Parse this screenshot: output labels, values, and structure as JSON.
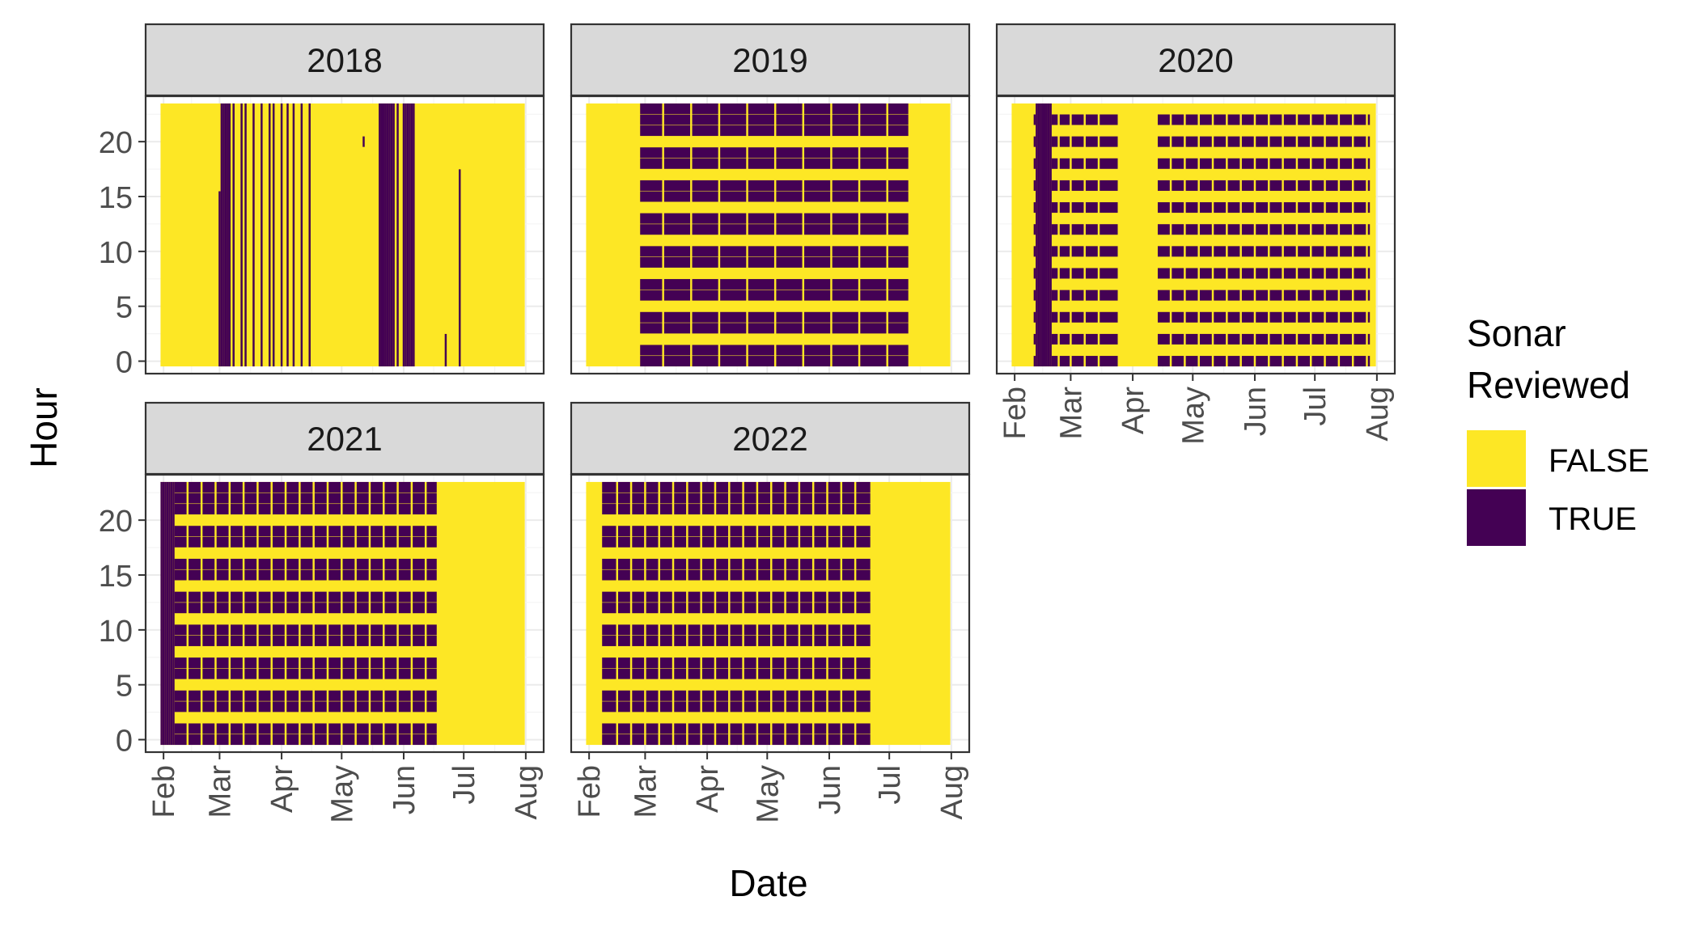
{
  "chart_data": {
    "type": "heatmap",
    "xlabel": "Date",
    "ylabel": "Hour",
    "y_ticks": [
      0,
      5,
      10,
      15,
      20
    ],
    "ylim": [
      0,
      23
    ],
    "x_ticks": [
      "Feb",
      "Mar",
      "Apr",
      "May",
      "Jun",
      "Jul",
      "Aug"
    ],
    "xlim": [
      "Feb 1",
      "Aug 1"
    ],
    "legend": {
      "title": [
        "Sonar",
        "Reviewed"
      ],
      "position": "right",
      "items": [
        {
          "label": "FALSE",
          "color": "#FDE725"
        },
        {
          "label": "TRUE",
          "color": "#440154"
        }
      ]
    },
    "colors": {
      "FALSE": "#FDE725",
      "TRUE": "#440154"
    },
    "grid": true,
    "facets": [
      {
        "year": "2018",
        "data_range": [
          "Jan 31",
          "Jul 31"
        ],
        "reviewed_full_days": [
          "Mar 2",
          "Mar 3",
          "Mar 4",
          "Mar 5",
          "Mar 6",
          "Mar 8",
          "Mar 12",
          "Mar 14",
          "Mar 18",
          "Mar 22",
          "Mar 26",
          "Mar 28",
          "Apr 1",
          "Apr 4",
          "Apr 7",
          "Apr 11",
          "Apr 15",
          "May 20",
          "May 21",
          "May 22",
          "May 23",
          "May 24",
          "May 25",
          "May 26",
          "May 27",
          "May 29",
          "Jun 1",
          "Jun 2",
          "Jun 3",
          "Jun 4",
          "Jun 5",
          "Jun 6"
        ],
        "reviewed_partial": [
          {
            "day": "Mar 1",
            "hours": [
              0,
              15
            ]
          },
          {
            "day": "Jun 22",
            "hours": [
              0,
              2
            ]
          },
          {
            "day": "Jun 29",
            "hours": [
              0,
              17
            ]
          },
          {
            "day": "May 12",
            "hours": [
              20,
              20
            ]
          }
        ],
        "reviewed_hours": []
      },
      {
        "year": "2019",
        "data_range": [
          "Jan 31",
          "Jul 31"
        ],
        "reviewed_days_range": [
          "Feb 27",
          "Jul 10"
        ],
        "reviewed_hours": [
          0,
          1,
          3,
          4,
          6,
          7,
          9,
          10,
          12,
          13,
          15,
          16,
          18,
          19,
          21,
          22,
          23
        ],
        "gap_days": [
          "Mar 10",
          "Mar 24",
          "Apr 7",
          "Apr 21",
          "May 5",
          "May 19",
          "Jun 2",
          "Jun 16",
          "Jun 30"
        ]
      },
      {
        "year": "2020",
        "data_range": [
          "Jan 31",
          "Jul 31"
        ],
        "reviewed_days_range": [
          "Feb 11",
          "Jul 28"
        ],
        "dense_days_range": [
          "Feb 12",
          "Feb 19"
        ],
        "reviewed_hours": [
          0,
          2,
          4,
          6,
          8,
          10,
          12,
          14,
          16,
          18,
          20,
          22
        ],
        "gap_days_range": [
          "Mar 25",
          "Apr 13"
        ],
        "gap_days": [
          "Feb 23",
          "Mar 1",
          "Mar 8",
          "Mar 15",
          "Apr 20",
          "Apr 27",
          "May 4",
          "May 11",
          "May 18",
          "May 25",
          "Jun 1",
          "Jun 8",
          "Jun 15",
          "Jun 22",
          "Jun 29",
          "Jul 6",
          "Jul 13",
          "Jul 20",
          "Jul 27"
        ]
      },
      {
        "year": "2021",
        "data_range": [
          "Jan 31",
          "Jul 31"
        ],
        "reviewed_days_range": [
          "Feb 6",
          "Jun 17"
        ],
        "dense_days_range": [
          "Jan 31",
          "Feb 6"
        ],
        "reviewed_hours": [
          0,
          1,
          3,
          4,
          6,
          7,
          9,
          10,
          12,
          13,
          15,
          16,
          18,
          19,
          21,
          22,
          23
        ],
        "gap_days": [
          "Feb 13",
          "Feb 20",
          "Feb 27",
          "Mar 6",
          "Mar 13",
          "Mar 20",
          "Mar 27",
          "Apr 3",
          "Apr 10",
          "Apr 17",
          "Apr 24",
          "May 1",
          "May 8",
          "May 15",
          "May 22",
          "May 29",
          "Jun 5",
          "Jun 12"
        ]
      },
      {
        "year": "2022",
        "data_range": [
          "Jan 31",
          "Jul 31"
        ],
        "reviewed_days_range": [
          "Feb 8",
          "Jun 21"
        ],
        "reviewed_hours": [
          0,
          1,
          3,
          4,
          6,
          7,
          9,
          10,
          12,
          13,
          15,
          16,
          18,
          19,
          21,
          22,
          23
        ],
        "gap_days": [
          "Feb 15",
          "Feb 22",
          "Mar 1",
          "Mar 8",
          "Mar 15",
          "Mar 22",
          "Mar 29",
          "Apr 5",
          "Apr 12",
          "Apr 19",
          "Apr 26",
          "May 3",
          "May 10",
          "May 17",
          "May 24",
          "May 31",
          "Jun 7",
          "Jun 14"
        ]
      }
    ]
  }
}
